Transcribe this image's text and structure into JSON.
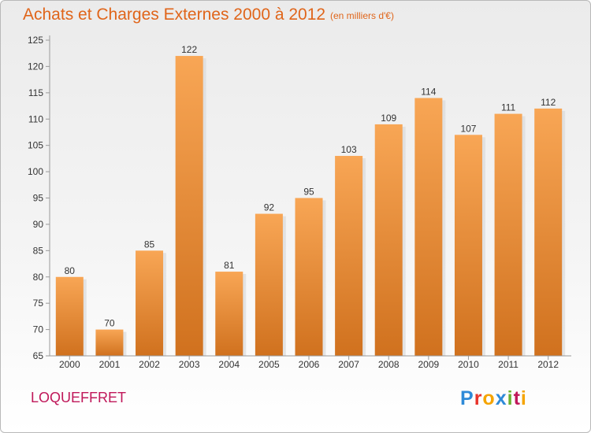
{
  "header": {
    "title": "Achats et Charges Externes 2000 à 2012",
    "subtitle": "(en milliers d'€)"
  },
  "footer": {
    "commune": "LOQUEFFRET",
    "logo_letters": [
      "P",
      "r",
      "o",
      "x",
      "i",
      "t",
      "i"
    ],
    "logo_colors": [
      "#2e8ad8",
      "#e8332a",
      "#f5a400",
      "#2e8ad8",
      "#6ab22f",
      "#c0185a",
      "#f5a400"
    ]
  },
  "chart_data": {
    "type": "bar",
    "title": "Achats et Charges Externes 2000 à 2012",
    "subtitle": "(en milliers d'€)",
    "xlabel": "",
    "ylabel": "",
    "categories": [
      "2000",
      "2001",
      "2002",
      "2003",
      "2004",
      "2005",
      "2006",
      "2007",
      "2008",
      "2009",
      "2010",
      "2011",
      "2012"
    ],
    "values": [
      80,
      70,
      85,
      122,
      81,
      92,
      95,
      103,
      109,
      114,
      107,
      111,
      112
    ],
    "ylim": [
      65,
      125
    ],
    "yticks": [
      65,
      70,
      75,
      80,
      85,
      90,
      95,
      100,
      105,
      110,
      115,
      120,
      125
    ],
    "grid": false,
    "bar_color_top": "#f8a655",
    "bar_color_bottom": "#d0711e"
  }
}
